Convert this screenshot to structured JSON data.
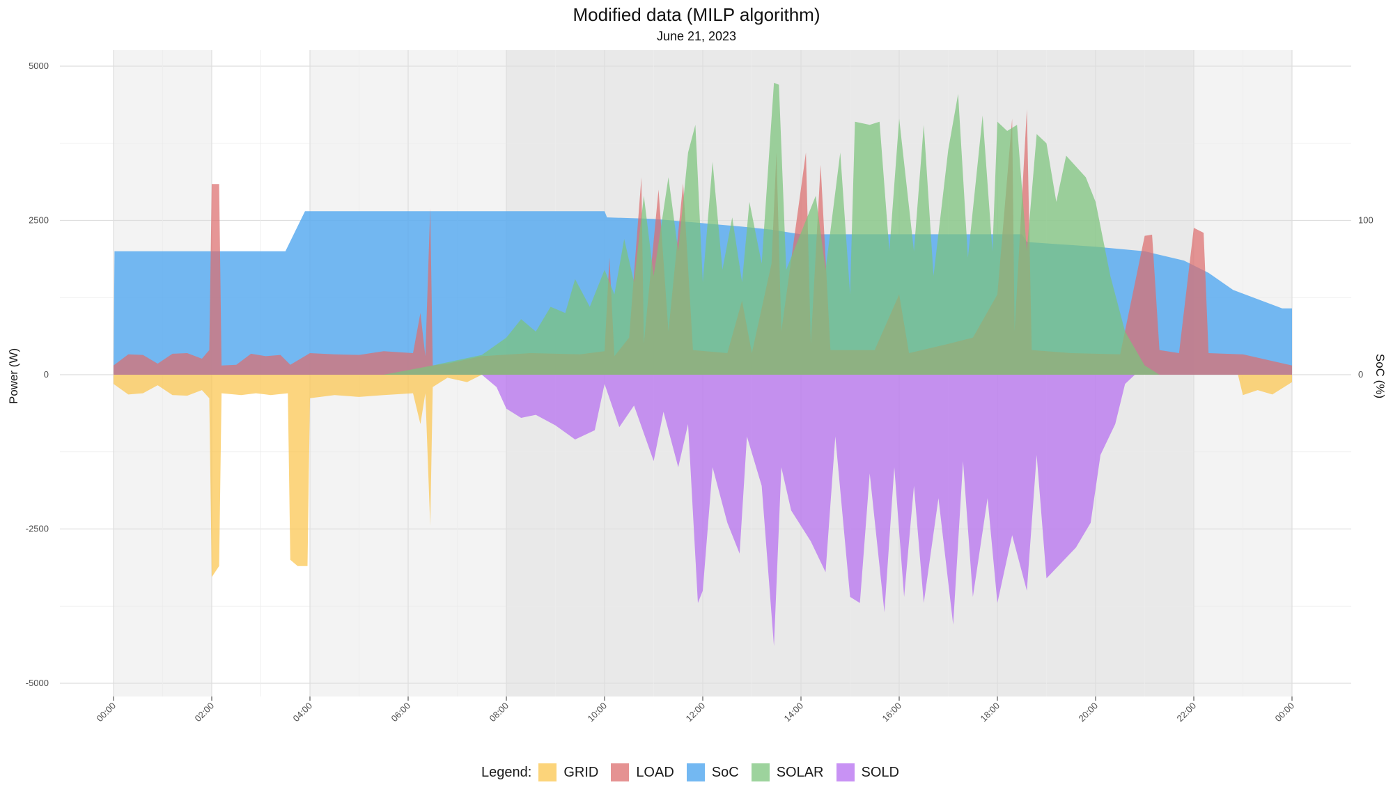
{
  "chart_data": {
    "type": "area",
    "title": "Modified data (MILP algorithm)",
    "subtitle": "June 21, 2023",
    "ylabel": "Power (W)",
    "y2label": "SoC (%)",
    "ylim": [
      -5200,
      5300
    ],
    "y_ticks": [
      5000,
      2500,
      0,
      -2500,
      -5000
    ],
    "y_tick_labels": [
      "5000",
      "2500",
      "0",
      "-2500",
      "-5000"
    ],
    "y2_ticks": [
      100,
      0
    ],
    "y2_tick_labels": [
      "100",
      "0"
    ],
    "y2_scale_w_per_pct": 25,
    "xlim_hours": [
      0,
      24
    ],
    "x_ticks_hours": [
      0,
      2,
      4,
      6,
      8,
      10,
      12,
      14,
      16,
      18,
      20,
      22,
      24
    ],
    "x_tick_labels": [
      "00:00",
      "02:00",
      "04:00",
      "06:00",
      "08:00",
      "10:00",
      "12:00",
      "14:00",
      "16:00",
      "18:00",
      "20:00",
      "22:00",
      "00:00"
    ],
    "shaded_periods": [
      {
        "start": 0,
        "end": 2,
        "shade": "light"
      },
      {
        "start": 4,
        "end": 8,
        "shade": "light"
      },
      {
        "start": 8,
        "end": 22,
        "shade": "dark"
      },
      {
        "start": 22,
        "end": 24,
        "shade": "light"
      }
    ],
    "legend": {
      "title": "Legend:",
      "placement": "bottom"
    },
    "series": [
      {
        "name": "SoC",
        "color": "#5aabf0",
        "axis": "secondary",
        "points": [
          [
            0,
            0
          ],
          [
            0.02,
            80
          ],
          [
            3.5,
            80
          ],
          [
            3.9,
            106
          ],
          [
            10.0,
            106
          ],
          [
            10.05,
            102
          ],
          [
            11.0,
            101
          ],
          [
            12.8,
            96
          ],
          [
            13.4,
            94
          ],
          [
            14.0,
            91
          ],
          [
            18.5,
            91
          ],
          [
            18.6,
            86
          ],
          [
            20.0,
            83
          ],
          [
            21.0,
            80
          ],
          [
            21.8,
            74
          ],
          [
            22.3,
            66
          ],
          [
            22.8,
            55
          ],
          [
            23.8,
            43
          ],
          [
            24,
            43
          ],
          [
            24,
            0
          ]
        ]
      },
      {
        "name": "LOAD",
        "color": "#dc6e6e",
        "axis": "primary",
        "points": [
          [
            0,
            150
          ],
          [
            0.3,
            330
          ],
          [
            0.6,
            320
          ],
          [
            0.9,
            180
          ],
          [
            1.2,
            340
          ],
          [
            1.5,
            350
          ],
          [
            1.8,
            260
          ],
          [
            1.95,
            400
          ],
          [
            2.0,
            3090
          ],
          [
            2.15,
            3090
          ],
          [
            2.2,
            150
          ],
          [
            2.5,
            160
          ],
          [
            2.8,
            340
          ],
          [
            3.1,
            300
          ],
          [
            3.4,
            320
          ],
          [
            3.6,
            160
          ],
          [
            4.0,
            350
          ],
          [
            4.5,
            330
          ],
          [
            5.0,
            320
          ],
          [
            5.5,
            380
          ],
          [
            6.1,
            350
          ],
          [
            6.25,
            1000
          ],
          [
            6.35,
            300
          ],
          [
            6.45,
            2700
          ],
          [
            6.5,
            150
          ],
          [
            6.8,
            180
          ],
          [
            7.5,
            300
          ],
          [
            8.5,
            350
          ],
          [
            9.5,
            330
          ],
          [
            10.0,
            380
          ],
          [
            10.1,
            1900
          ],
          [
            10.2,
            300
          ],
          [
            10.5,
            600
          ],
          [
            10.75,
            3200
          ],
          [
            10.8,
            500
          ],
          [
            11.1,
            3000
          ],
          [
            11.3,
            700
          ],
          [
            11.6,
            3100
          ],
          [
            11.8,
            400
          ],
          [
            12.5,
            350
          ],
          [
            12.8,
            1200
          ],
          [
            13.0,
            350
          ],
          [
            13.4,
            1800
          ],
          [
            13.5,
            3600
          ],
          [
            13.6,
            700
          ],
          [
            14.1,
            3600
          ],
          [
            14.2,
            500
          ],
          [
            14.4,
            3400
          ],
          [
            14.6,
            400
          ],
          [
            15.5,
            400
          ],
          [
            16.0,
            1300
          ],
          [
            16.2,
            350
          ],
          [
            17.0,
            500
          ],
          [
            17.5,
            600
          ],
          [
            18.0,
            1300
          ],
          [
            18.3,
            4150
          ],
          [
            18.35,
            700
          ],
          [
            18.6,
            4300
          ],
          [
            18.7,
            400
          ],
          [
            19.5,
            350
          ],
          [
            20.5,
            330
          ],
          [
            21.0,
            2250
          ],
          [
            21.15,
            2270
          ],
          [
            21.3,
            400
          ],
          [
            21.7,
            350
          ],
          [
            22.0,
            2380
          ],
          [
            22.2,
            2300
          ],
          [
            22.3,
            350
          ],
          [
            23.0,
            330
          ],
          [
            24.0,
            150
          ]
        ]
      },
      {
        "name": "SOLAR",
        "color": "#7cc47c",
        "axis": "primary",
        "points": [
          [
            0,
            0
          ],
          [
            5.5,
            0
          ],
          [
            6.5,
            150
          ],
          [
            7.5,
            320
          ],
          [
            8.0,
            600
          ],
          [
            8.3,
            900
          ],
          [
            8.6,
            700
          ],
          [
            8.9,
            1100
          ],
          [
            9.2,
            1000
          ],
          [
            9.4,
            1550
          ],
          [
            9.7,
            1100
          ],
          [
            10.0,
            1700
          ],
          [
            10.2,
            1300
          ],
          [
            10.4,
            2200
          ],
          [
            10.6,
            1500
          ],
          [
            10.8,
            2900
          ],
          [
            11.0,
            1600
          ],
          [
            11.3,
            3200
          ],
          [
            11.5,
            2000
          ],
          [
            11.7,
            3600
          ],
          [
            11.85,
            4050
          ],
          [
            12.0,
            1500
          ],
          [
            12.2,
            3450
          ],
          [
            12.4,
            1700
          ],
          [
            12.6,
            2550
          ],
          [
            12.8,
            1500
          ],
          [
            12.95,
            2800
          ],
          [
            13.2,
            1800
          ],
          [
            13.45,
            4730
          ],
          [
            13.55,
            4700
          ],
          [
            13.7,
            1700
          ],
          [
            14.0,
            2300
          ],
          [
            14.3,
            2900
          ],
          [
            14.5,
            1700
          ],
          [
            14.8,
            3600
          ],
          [
            15.0,
            1300
          ],
          [
            15.1,
            4100
          ],
          [
            15.4,
            4050
          ],
          [
            15.6,
            4100
          ],
          [
            15.8,
            2000
          ],
          [
            16.0,
            4150
          ],
          [
            16.3,
            2000
          ],
          [
            16.5,
            4050
          ],
          [
            16.7,
            1600
          ],
          [
            17.0,
            3650
          ],
          [
            17.2,
            4550
          ],
          [
            17.4,
            1900
          ],
          [
            17.7,
            4200
          ],
          [
            17.9,
            2000
          ],
          [
            18.0,
            4100
          ],
          [
            18.2,
            3950
          ],
          [
            18.4,
            4050
          ],
          [
            18.6,
            2000
          ],
          [
            18.8,
            3900
          ],
          [
            19.0,
            3750
          ],
          [
            19.2,
            2800
          ],
          [
            19.4,
            3550
          ],
          [
            19.8,
            3200
          ],
          [
            20.0,
            2800
          ],
          [
            20.3,
            1600
          ],
          [
            20.6,
            700
          ],
          [
            21.0,
            150
          ],
          [
            21.3,
            0
          ],
          [
            24.0,
            0
          ]
        ]
      },
      {
        "name": "GRID",
        "color": "#fbc54e",
        "axis": "primary",
        "points": [
          [
            0,
            -150
          ],
          [
            0.3,
            -320
          ],
          [
            0.6,
            -300
          ],
          [
            0.9,
            -170
          ],
          [
            1.2,
            -330
          ],
          [
            1.5,
            -340
          ],
          [
            1.8,
            -250
          ],
          [
            1.95,
            -380
          ],
          [
            2.0,
            -3280
          ],
          [
            2.15,
            -3100
          ],
          [
            2.2,
            -300
          ],
          [
            2.6,
            -330
          ],
          [
            2.9,
            -300
          ],
          [
            3.2,
            -330
          ],
          [
            3.55,
            -300
          ],
          [
            3.6,
            -3000
          ],
          [
            3.75,
            -3100
          ],
          [
            3.95,
            -3100
          ],
          [
            4.0,
            -380
          ],
          [
            4.5,
            -330
          ],
          [
            5.0,
            -360
          ],
          [
            5.5,
            -330
          ],
          [
            6.1,
            -300
          ],
          [
            6.25,
            -800
          ],
          [
            6.35,
            -300
          ],
          [
            6.45,
            -2450
          ],
          [
            6.5,
            -200
          ],
          [
            6.8,
            -50
          ],
          [
            7.2,
            -120
          ],
          [
            7.5,
            0
          ],
          [
            22.9,
            0
          ],
          [
            23.0,
            -330
          ],
          [
            23.3,
            -250
          ],
          [
            23.6,
            -320
          ],
          [
            24.0,
            -120
          ]
        ]
      },
      {
        "name": "SOLD",
        "color": "#b66ef0",
        "axis": "primary",
        "points": [
          [
            0,
            0
          ],
          [
            7.5,
            0
          ],
          [
            7.8,
            -200
          ],
          [
            8.0,
            -550
          ],
          [
            8.3,
            -700
          ],
          [
            8.6,
            -650
          ],
          [
            9.0,
            -820
          ],
          [
            9.4,
            -1050
          ],
          [
            9.8,
            -900
          ],
          [
            10.0,
            -150
          ],
          [
            10.3,
            -850
          ],
          [
            10.6,
            -500
          ],
          [
            11.0,
            -1400
          ],
          [
            11.2,
            -600
          ],
          [
            11.5,
            -1500
          ],
          [
            11.7,
            -800
          ],
          [
            11.9,
            -3700
          ],
          [
            12.0,
            -3500
          ],
          [
            12.2,
            -1500
          ],
          [
            12.5,
            -2400
          ],
          [
            12.75,
            -2900
          ],
          [
            12.9,
            -1000
          ],
          [
            13.2,
            -1800
          ],
          [
            13.45,
            -4400
          ],
          [
            13.6,
            -1500
          ],
          [
            13.8,
            -2200
          ],
          [
            14.2,
            -2700
          ],
          [
            14.5,
            -3200
          ],
          [
            14.7,
            -1000
          ],
          [
            15.0,
            -3600
          ],
          [
            15.2,
            -3700
          ],
          [
            15.4,
            -1600
          ],
          [
            15.7,
            -3850
          ],
          [
            15.9,
            -1500
          ],
          [
            16.1,
            -3600
          ],
          [
            16.3,
            -1800
          ],
          [
            16.5,
            -3700
          ],
          [
            16.8,
            -2000
          ],
          [
            17.1,
            -4050
          ],
          [
            17.3,
            -1400
          ],
          [
            17.5,
            -3600
          ],
          [
            17.8,
            -2000
          ],
          [
            18.0,
            -3700
          ],
          [
            18.3,
            -2600
          ],
          [
            18.6,
            -3500
          ],
          [
            18.8,
            -1300
          ],
          [
            19.0,
            -3300
          ],
          [
            19.3,
            -3050
          ],
          [
            19.6,
            -2800
          ],
          [
            19.9,
            -2400
          ],
          [
            20.1,
            -1300
          ],
          [
            20.4,
            -800
          ],
          [
            20.6,
            -150
          ],
          [
            20.8,
            0
          ],
          [
            24.0,
            0
          ]
        ]
      }
    ]
  }
}
